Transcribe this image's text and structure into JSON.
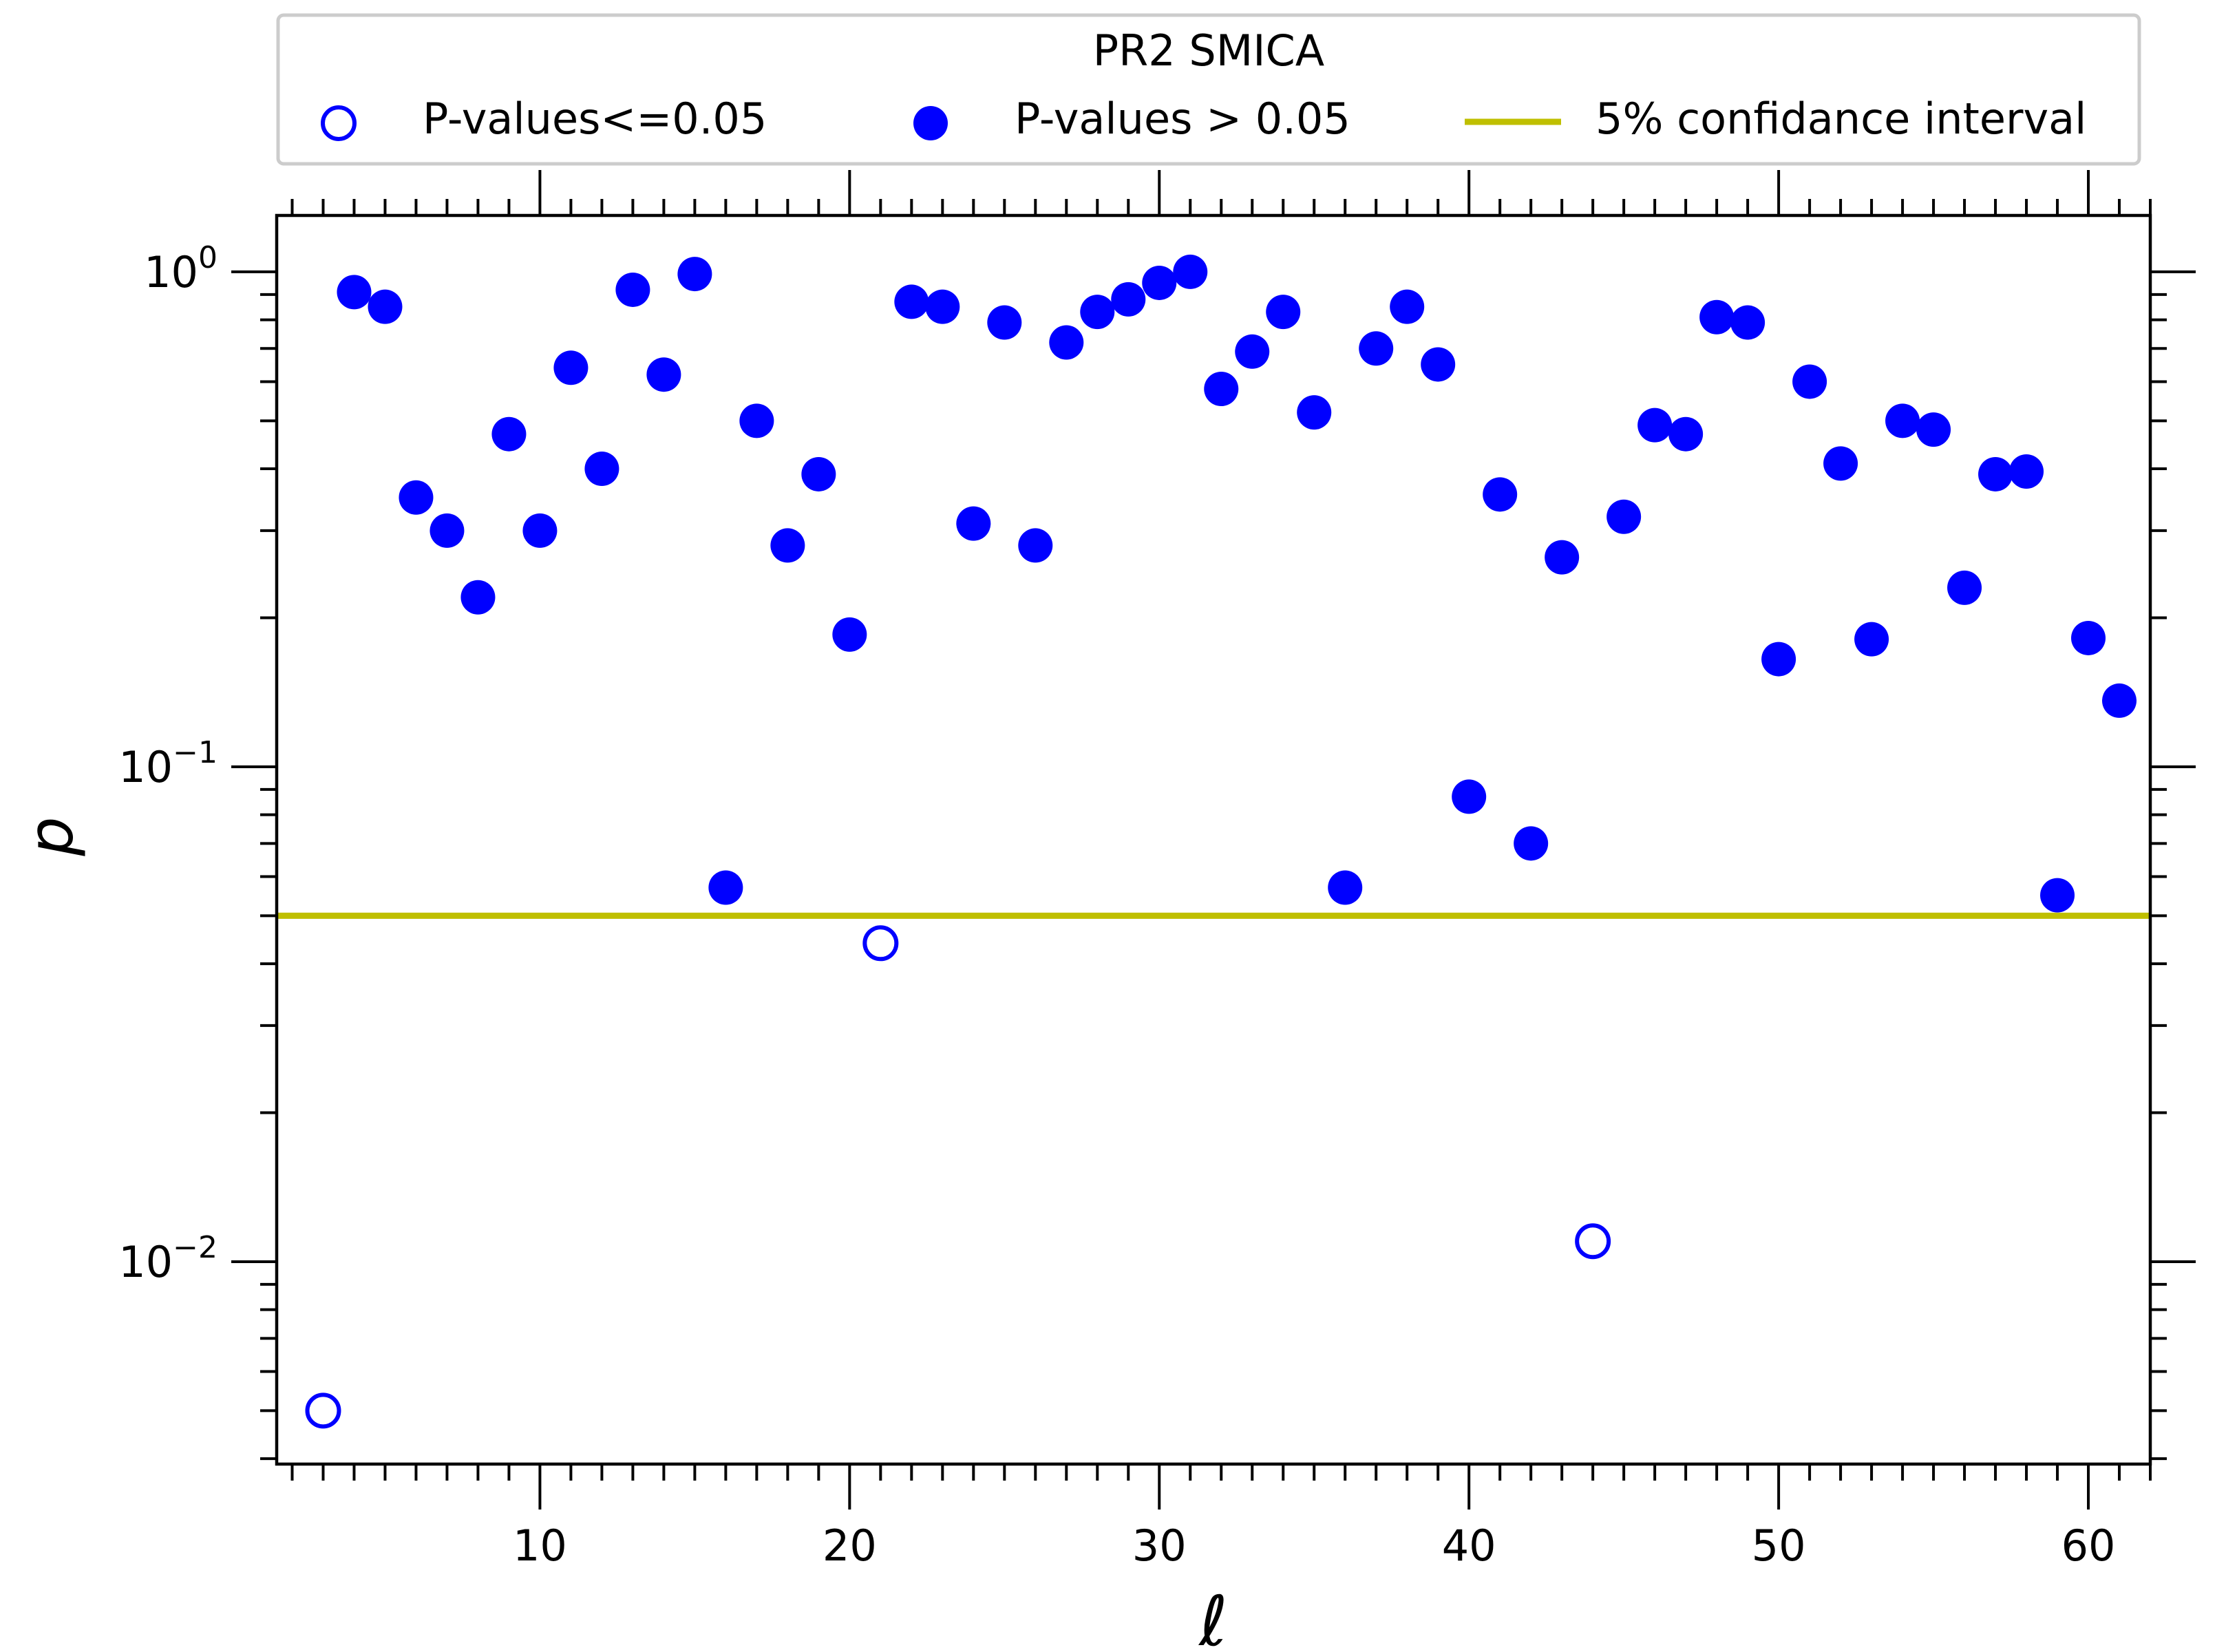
{
  "chart_data": {
    "type": "scatter",
    "title": "PR2 SMICA",
    "xlabel": "ℓ",
    "ylabel": "p",
    "yscale": "log",
    "xlim": [
      1.5,
      62
    ],
    "ylim": [
      0.0039,
      1.3
    ],
    "x_ticks": [
      10,
      20,
      30,
      40,
      50,
      60
    ],
    "x_tick_labels": [
      "10",
      "20",
      "30",
      "40",
      "50",
      "60"
    ],
    "y_ticks": [
      {
        "value": 1,
        "base": "10",
        "exp": "0"
      },
      {
        "value": 0.1,
        "base": "10",
        "exp": "−1"
      },
      {
        "value": 0.01,
        "base": "10",
        "exp": "−2"
      }
    ],
    "threshold": {
      "label": "5% confidance interval",
      "value": 0.05,
      "color": "#bfbf00"
    },
    "legend": {
      "position": "top, above the axes",
      "items": [
        {
          "label": "P-values<=0.05",
          "style": "open"
        },
        {
          "label": "P-values > 0.05",
          "style": "filled"
        },
        {
          "label": "5% confidance interval",
          "style": "line"
        }
      ]
    },
    "marker_color": "#0000ff",
    "series": [
      {
        "name": "P-values<=0.05",
        "style": "open",
        "points": [
          [
            3,
            0.005
          ],
          [
            21,
            0.044
          ],
          [
            44,
            0.011
          ]
        ]
      },
      {
        "name": "P-values > 0.05",
        "style": "filled",
        "points": [
          [
            4,
            0.91
          ],
          [
            5,
            0.85
          ],
          [
            6,
            0.35
          ],
          [
            7,
            0.3
          ],
          [
            8,
            0.22
          ],
          [
            9,
            0.47
          ],
          [
            10,
            0.3
          ],
          [
            11,
            0.64
          ],
          [
            12,
            0.4
          ],
          [
            13,
            0.92
          ],
          [
            14,
            0.62
          ],
          [
            15,
            0.99
          ],
          [
            16,
            0.057
          ],
          [
            17,
            0.5
          ],
          [
            18,
            0.28
          ],
          [
            19,
            0.39
          ],
          [
            20,
            0.185
          ],
          [
            22,
            0.87
          ],
          [
            23,
            0.85
          ],
          [
            24,
            0.31
          ],
          [
            25,
            0.79
          ],
          [
            26,
            0.28
          ],
          [
            27,
            0.72
          ],
          [
            28,
            0.83
          ],
          [
            29,
            0.88
          ],
          [
            30,
            0.95
          ],
          [
            31,
            1.0
          ],
          [
            32,
            0.58
          ],
          [
            33,
            0.69
          ],
          [
            34,
            0.83
          ],
          [
            35,
            0.52
          ],
          [
            36,
            0.057
          ],
          [
            37,
            0.7
          ],
          [
            38,
            0.85
          ],
          [
            39,
            0.65
          ],
          [
            40,
            0.087
          ],
          [
            41,
            0.355
          ],
          [
            42,
            0.07
          ],
          [
            43,
            0.265
          ],
          [
            45,
            0.32
          ],
          [
            46,
            0.49
          ],
          [
            47,
            0.47
          ],
          [
            48,
            0.81
          ],
          [
            49,
            0.79
          ],
          [
            50,
            0.165
          ],
          [
            51,
            0.6
          ],
          [
            52,
            0.41
          ],
          [
            53,
            0.181
          ],
          [
            54,
            0.5
          ],
          [
            55,
            0.48
          ],
          [
            56,
            0.23
          ],
          [
            57,
            0.39
          ],
          [
            58,
            0.395
          ],
          [
            59,
            0.055
          ],
          [
            60,
            0.182
          ],
          [
            61,
            0.136
          ]
        ]
      }
    ]
  }
}
